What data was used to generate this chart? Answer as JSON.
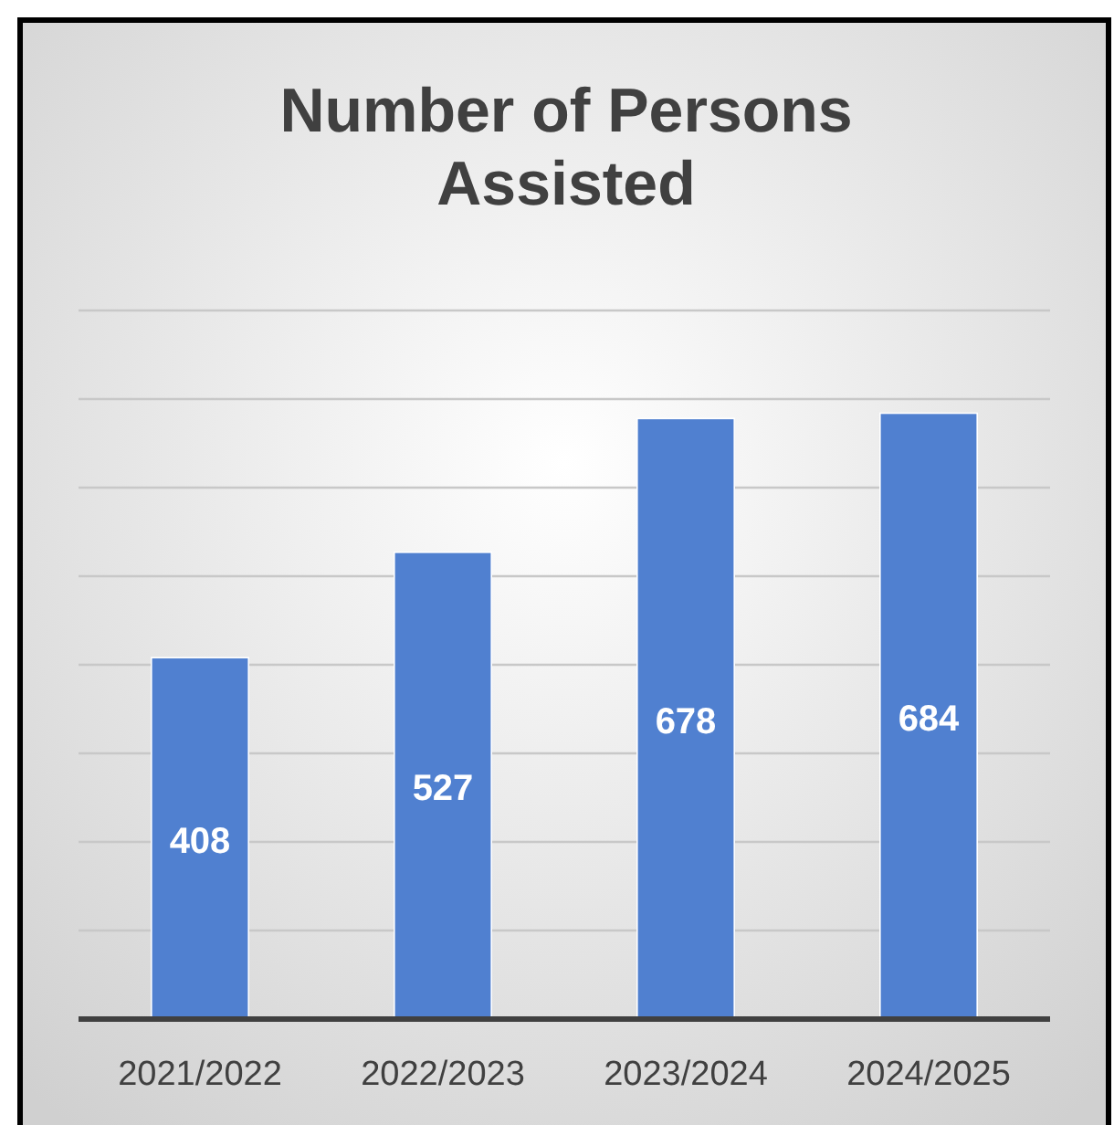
{
  "chart_data": {
    "type": "bar",
    "title": "Number of Persons Assisted",
    "categories": [
      "2021/2022",
      "2022/2023",
      "2023/2024",
      "2024/2025"
    ],
    "values": [
      408,
      527,
      678,
      684
    ],
    "color": "#5080d0",
    "ylim": [
      0,
      800
    ],
    "yticks": [
      {
        "value": 0,
        "label": null
      },
      {
        "value": 100,
        "label": null
      },
      {
        "value": 200,
        "label": null
      },
      {
        "value": 300,
        "label": null
      },
      {
        "value": 400,
        "label": null
      },
      {
        "value": 500,
        "label": null
      },
      {
        "value": 600,
        "label": null
      },
      {
        "value": 700,
        "label": null
      },
      {
        "value": 800,
        "label": null
      }
    ],
    "grid": "y",
    "tick_labels": "x",
    "data_labels": true
  }
}
